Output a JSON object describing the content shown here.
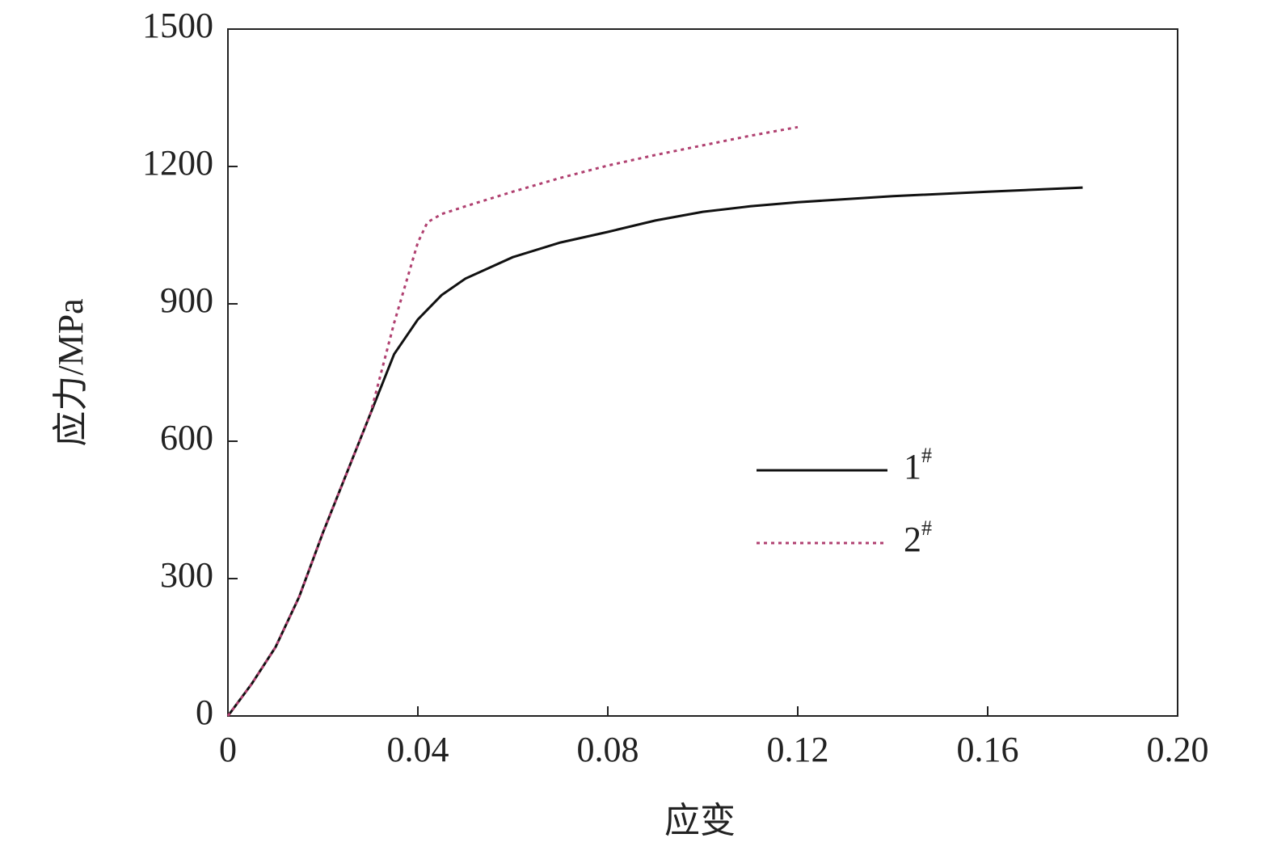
{
  "chart_data": {
    "type": "line",
    "x_label": "应变",
    "y_label": "应力/MPa",
    "xlim": [
      0,
      0.2
    ],
    "ylim": [
      0,
      1500
    ],
    "xticks": [
      0,
      0.04,
      0.08,
      0.12,
      0.16,
      {
        "value": 0.2,
        "label": "0.20"
      }
    ],
    "yticks": [
      0,
      300,
      600,
      900,
      1200,
      1500
    ],
    "series": [
      {
        "name": "1#",
        "color": "#111111",
        "dash": "solid",
        "x": [
          0,
          0.005,
          0.01,
          0.015,
          0.02,
          0.025,
          0.03,
          0.035,
          0.04,
          0.045,
          0.05,
          0.06,
          0.07,
          0.08,
          0.09,
          0.1,
          0.11,
          0.12,
          0.14,
          0.16,
          0.18
        ],
        "values": [
          0,
          70,
          150,
          260,
          400,
          530,
          660,
          790,
          866,
          919,
          955,
          1002,
          1034,
          1057,
          1082,
          1101,
          1113,
          1122,
          1135,
          1145,
          1154
        ]
      },
      {
        "name": "2#",
        "color": "#b04070",
        "dash": "dotted",
        "x": [
          0,
          0.005,
          0.01,
          0.015,
          0.02,
          0.025,
          0.03,
          0.035,
          0.04,
          0.042,
          0.045,
          0.05,
          0.06,
          0.07,
          0.08,
          0.09,
          0.1,
          0.11,
          0.12
        ],
        "values": [
          0,
          70,
          150,
          260,
          400,
          530,
          660,
          858,
          1034,
          1078,
          1096,
          1113,
          1145,
          1175,
          1202,
          1225,
          1246,
          1267,
          1286
        ]
      }
    ]
  }
}
